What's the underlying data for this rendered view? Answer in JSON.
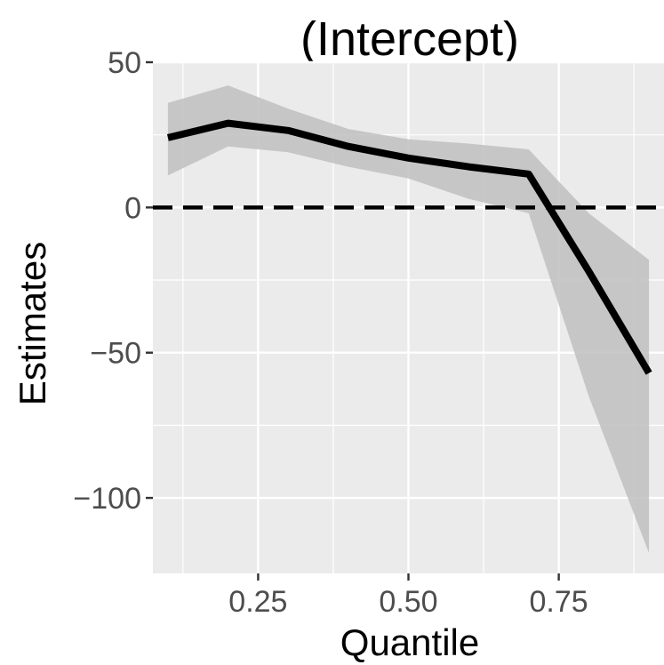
{
  "chart_data": {
    "type": "line",
    "title": "(Intercept)",
    "xlabel": "Quantile",
    "ylabel": "Estimates",
    "xlim": [
      0.075,
      0.925
    ],
    "ylim": [
      -126,
      50
    ],
    "x_ticks": [
      0.25,
      0.5,
      0.75
    ],
    "x_tick_labels": [
      "0.25",
      "0.50",
      "0.75"
    ],
    "y_ticks": [
      50,
      0,
      -50,
      -100
    ],
    "y_tick_labels": [
      "50",
      "0",
      "−50",
      "−100"
    ],
    "grid": true,
    "reference_line": {
      "y": 0,
      "style": "dashed"
    },
    "series": [
      {
        "x": [
          0.1,
          0.2,
          0.3,
          0.4,
          0.5,
          0.6,
          0.7,
          0.8,
          0.9
        ],
        "values": [
          24,
          29,
          26.5,
          21,
          17,
          14,
          11.5,
          -22,
          -57
        ],
        "lower": [
          11,
          21,
          19,
          14,
          10,
          3,
          -2,
          -65,
          -119
        ],
        "upper": [
          36,
          42,
          34,
          27,
          23.5,
          22,
          20,
          -2,
          -18
        ]
      }
    ],
    "colors": {
      "panel": "#ebebeb",
      "grid": "#ffffff",
      "line": "#000000",
      "band": "#bfbfbf"
    }
  }
}
